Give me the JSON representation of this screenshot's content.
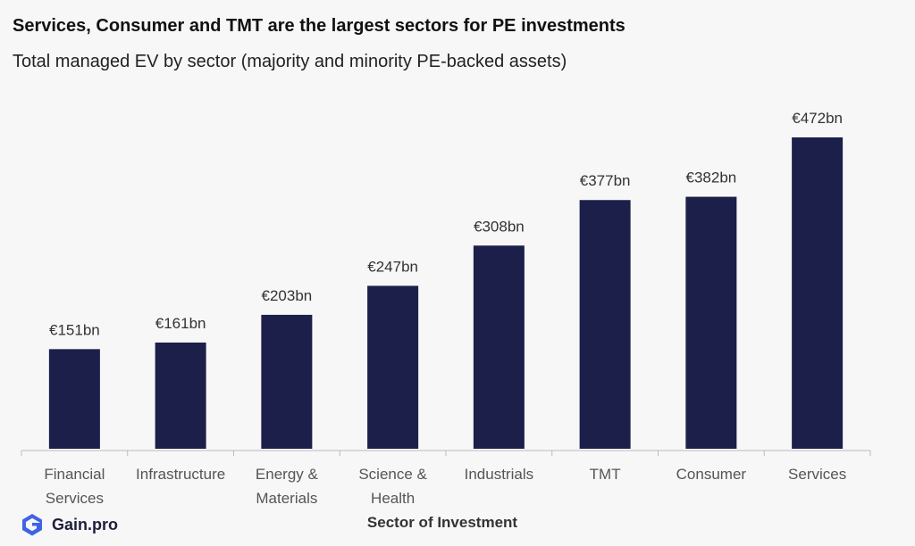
{
  "header": {
    "title": "Services, Consumer and TMT are the largest sectors for PE investments",
    "subtitle": "Total managed EV by sector (majority and minority PE-backed assets)"
  },
  "brand": {
    "name": "Gain.pro",
    "color": "#3f63e6"
  },
  "chart_data": {
    "type": "bar",
    "categories": [
      "Financial Services",
      "Infrastructure",
      "Energy & Materials",
      "Science & Health",
      "Industrials",
      "TMT",
      "Consumer",
      "Services"
    ],
    "category_lines": [
      [
        "Financial",
        "Services"
      ],
      [
        "Infrastructure"
      ],
      [
        "Energy &",
        "Materials"
      ],
      [
        "Science &",
        "Health"
      ],
      [
        "Industrials"
      ],
      [
        "TMT"
      ],
      [
        "Consumer"
      ],
      [
        "Services"
      ]
    ],
    "values": [
      151,
      161,
      203,
      247,
      308,
      377,
      382,
      472
    ],
    "labels": [
      "€151bn",
      "€161bn",
      "€203bn",
      "€247bn",
      "€308bn",
      "€377bn",
      "€382bn",
      "€472bn"
    ],
    "xlabel": "Sector of Investment",
    "ylabel": "",
    "bar_color": "#1b1f4a",
    "grid": false,
    "legend": "none"
  }
}
